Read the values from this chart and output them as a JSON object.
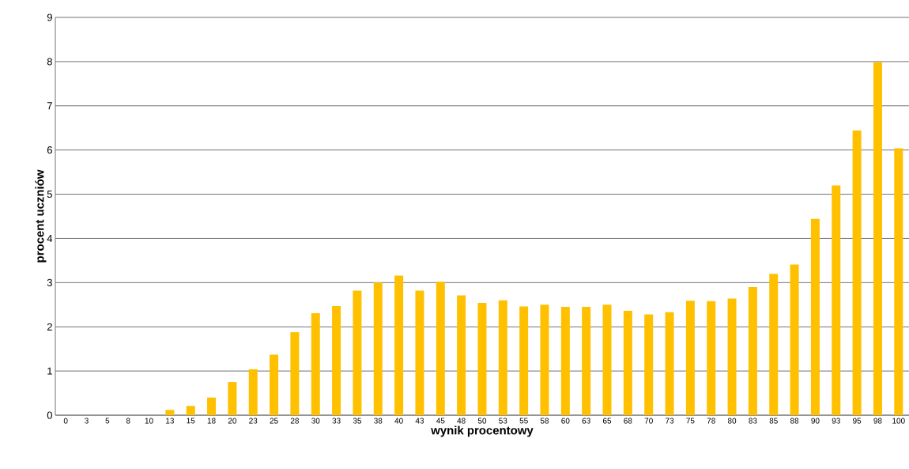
{
  "chart_data": {
    "type": "bar",
    "xlabel": "wynik procentowy",
    "ylabel": "procent uczniów",
    "categories": [
      "0",
      "3",
      "5",
      "8",
      "10",
      "13",
      "15",
      "18",
      "20",
      "23",
      "25",
      "28",
      "30",
      "33",
      "35",
      "38",
      "40",
      "43",
      "45",
      "48",
      "50",
      "53",
      "55",
      "58",
      "60",
      "63",
      "65",
      "68",
      "70",
      "73",
      "75",
      "78",
      "80",
      "83",
      "85",
      "88",
      "90",
      "93",
      "95",
      "98",
      "100"
    ],
    "values": [
      0,
      0,
      0,
      0,
      0,
      0.12,
      0.21,
      0.4,
      0.75,
      1.04,
      1.37,
      1.88,
      2.31,
      2.47,
      2.82,
      3.0,
      3.16,
      2.82,
      3.02,
      2.71,
      2.54,
      2.6,
      2.46,
      2.5,
      2.45,
      2.45,
      2.5,
      2.36,
      2.28,
      2.33,
      2.59,
      2.58,
      2.64,
      2.9,
      3.2,
      3.41,
      4.44,
      5.2,
      6.44,
      7.99,
      6.04
    ],
    "color": "#ffc000",
    "ylim": [
      0,
      9
    ],
    "yticks": [
      0,
      1,
      2,
      3,
      4,
      5,
      6,
      7,
      8,
      9
    ],
    "grid": "y"
  }
}
